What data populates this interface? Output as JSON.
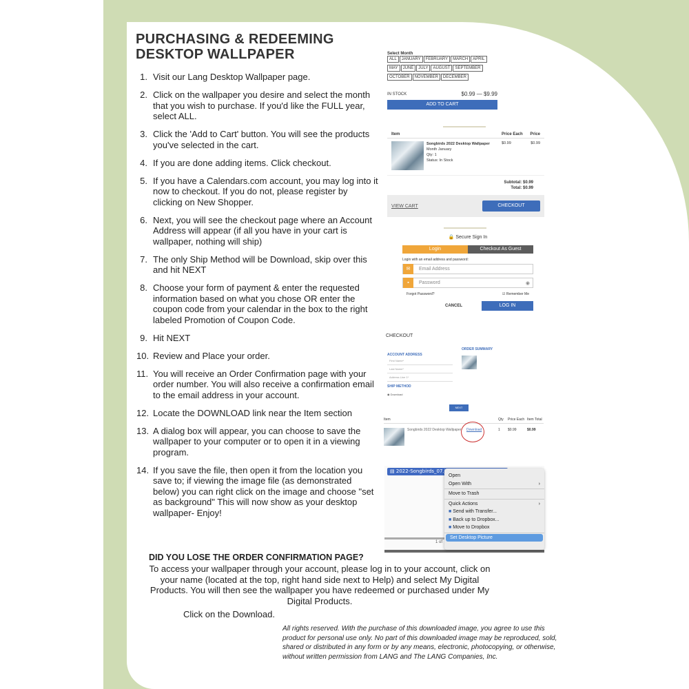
{
  "title": [
    "PURCHASING & REDEEMING",
    "DESKTOP WALLPAPER"
  ],
  "steps": [
    {
      "n": "1.",
      "t": "Visit our Lang Desktop Wallpaper page."
    },
    {
      "n": "2.",
      "t": "Click on the wallpaper you desire and select the month that you wish to purchase. If you'd like the FULL year, select ALL."
    },
    {
      "n": "3.",
      "t": "Click the 'Add to Cart' button. You will see the products you've selected in the cart."
    },
    {
      "n": "4.",
      "t": "If you are done adding items. Click checkout."
    },
    {
      "n": "5.",
      "t": "If you have a Calendars.com account, you may log into it now to checkout. If you do not, please register by clicking on New Shopper."
    },
    {
      "n": "6.",
      "t": "Next, you will see the checkout page where an Account Address will appear (if all you have in your cart is wallpaper, nothing will ship)"
    },
    {
      "n": "7.",
      "t": "The only Ship Method will be Download, skip over this and hit NEXT"
    },
    {
      "n": "8.",
      "t": "Choose your form of payment & enter the requested information based on what you chose OR enter the coupon code from your calendar in the box to the right labeled Promotion of Coupon Code."
    },
    {
      "n": "9.",
      "t": "Hit NEXT"
    },
    {
      "n": "10.",
      "t": "Review and Place your order."
    },
    {
      "n": "11.",
      "t": "You will receive an Order Confirmation page with your order number. You will also receive a confirmation email to the email address in your account."
    },
    {
      "n": "12.",
      "t": "Locate the DOWNLOAD link near the Item section"
    },
    {
      "n": "13.",
      "t": "A dialog box will appear, you can choose to save the wallpaper to your computer or to open it in a viewing program."
    },
    {
      "n": "14.",
      "t": "If you save the file, then open it from the location you save to; if viewing the image file (as demonstrated below) you can right click on the image and choose \"set as background\" This will now show as your desktop wallpaper- Enjoy!"
    }
  ],
  "lost_heading": "DID YOU LOSE THE ORDER CONFIRMATION PAGE?",
  "lost_text": "To access your wallpaper through your account, please log in to your account, click on your name (located at the top, right hand side next to Help) and select My Digital Products. You will then see the wallpaper you have redeemed or purchased under My Digital Products.",
  "click_download": "Click on the Download.",
  "legal": "All rights reserved. With the purchase of this downloaded image, you agree to use this product for personal use only. No part of this downloaded image may be reproduced, sold, shared or distributed in any form or by any means, electronic, photocopying, or otherwise, without written permission from LANG and The LANG Companies, Inc.",
  "product": {
    "select_month": "Select Month",
    "months": [
      "ALL",
      "JANUARY",
      "FEBRUARY",
      "MARCH",
      "APRIL",
      "MAY",
      "JUNE",
      "JULY",
      "AUGUST",
      "SEPTEMBER",
      "OCTOBER",
      "NOVEMBER",
      "DECEMBER"
    ],
    "stock": "IN STOCK",
    "price": "$0.99 — $9.99",
    "add_to_cart": "ADD TO CART"
  },
  "cart": {
    "col_item": "Item",
    "col_each": "Price Each",
    "col_price": "Price",
    "name": "Songbirds 2022 Desktop Wallpaper",
    "month": "Month January",
    "qty": "Qty: 1",
    "status": "Status: In Stock",
    "each": "$0.99",
    "price": "$0.99",
    "subtotal_label": "Subtotal:",
    "subtotal": "$0.99",
    "total_label": "Total:",
    "total": "$0.99",
    "view_cart": "VIEW CART",
    "checkout": "CHECKOUT"
  },
  "signin": {
    "heading": "Secure Sign In",
    "tab_login": "Login",
    "tab_guest": "Checkout As Guest",
    "hint": "Login with an email address and password:",
    "email_ph": "Email Address",
    "password_ph": "Password",
    "forgot": "Forgot Password?",
    "remember": "Remember Me",
    "cancel": "CANCEL",
    "login": "LOG IN"
  },
  "checkout": {
    "title": "CHECKOUT",
    "account_address": "ACCOUNT ADDRESS",
    "first": "First Name*",
    "last": "Last Name*",
    "addr": "Address Line 1*",
    "ship_method": "SHIP METHOD",
    "download": "Download",
    "order_summary": "ORDER SUMMARY",
    "next": "NEXT"
  },
  "order": {
    "col_item": "Item",
    "col_qty": "Qty",
    "col_each": "Price Each",
    "col_total": "Item Total",
    "name": "Songbirds 2022 Desktop Wallpaper",
    "download": "Download",
    "qty": "1",
    "each": "$0.99",
    "total": "$0.99"
  },
  "finder": {
    "file": "2022-Songbirds_07.jpg",
    "page": "1 of",
    "menu": [
      "Open",
      "Open With",
      "Move to Trash",
      "Quick Actions",
      "Send with Transfer...",
      "Back up to Dropbox...",
      "Move to Dropbox",
      "Set Desktop Picture"
    ]
  }
}
